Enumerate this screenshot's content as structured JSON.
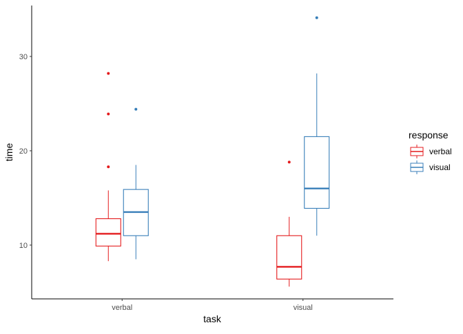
{
  "chart_data": {
    "type": "boxplot",
    "title": "",
    "xlabel": "task",
    "ylabel": "time",
    "categories": [
      "verbal",
      "visual"
    ],
    "ylim": [
      4.3,
      35.4
    ],
    "yticks": [
      10,
      20,
      30
    ],
    "grid": false,
    "legend": {
      "title": "response",
      "placement": "right"
    },
    "series": [
      {
        "name": "verbal",
        "color": "#E41A1C",
        "boxes": [
          {
            "category": "verbal",
            "lower_whisker": 8.3,
            "q1": 9.9,
            "median": 11.2,
            "q3": 12.8,
            "upper_whisker": 15.8,
            "outliers": [
              18.3,
              23.9,
              28.2
            ]
          },
          {
            "category": "visual",
            "lower_whisker": 5.6,
            "q1": 6.4,
            "median": 7.7,
            "q3": 11.0,
            "upper_whisker": 13.0,
            "outliers": [
              18.8
            ]
          }
        ]
      },
      {
        "name": "visual",
        "color": "#377EB8",
        "boxes": [
          {
            "category": "verbal",
            "lower_whisker": 8.5,
            "q1": 11.0,
            "median": 13.5,
            "q3": 15.9,
            "upper_whisker": 18.5,
            "outliers": [
              24.4
            ]
          },
          {
            "category": "visual",
            "lower_whisker": 11.0,
            "q1": 13.9,
            "median": 16.0,
            "q3": 21.5,
            "upper_whisker": 28.2,
            "outliers": [
              34.1
            ]
          }
        ]
      }
    ]
  }
}
